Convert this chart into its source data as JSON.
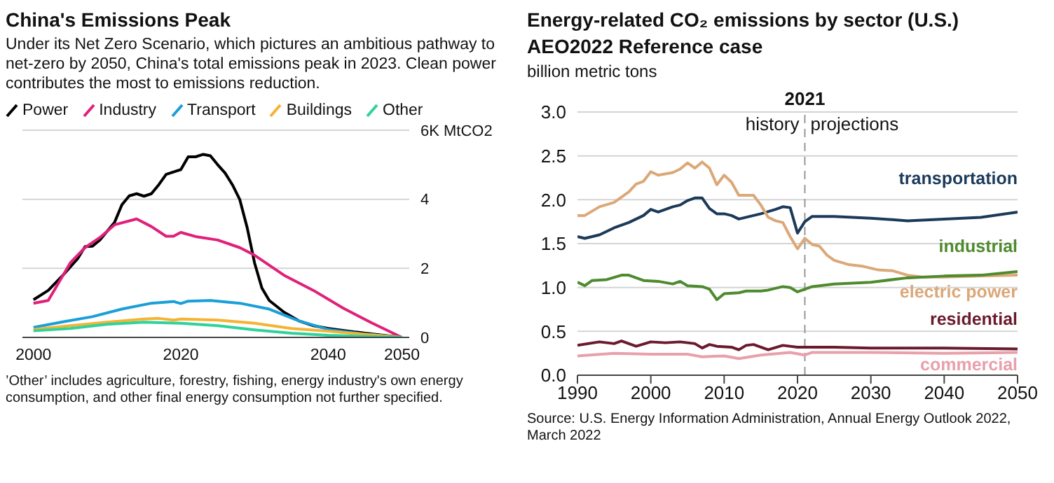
{
  "chart_data": [
    {
      "type": "line",
      "title": "China's Emissions Peak",
      "subtitle": "Under its Net Zero Scenario, which pictures an ambitious pathway to net-zero by 2050, China's total emissions peak in 2023. Clean power contributes the most to emissions reduction.",
      "legend": "top left",
      "grid": "y",
      "xlim": [
        1998.5,
        2051
      ],
      "xticks": [
        2000,
        2020,
        2040,
        2050
      ],
      "ylim": [
        0,
        6
      ],
      "yticks": [
        0,
        2,
        4,
        {
          "value": 6,
          "label": "6K MtCO2"
        }
      ],
      "annotations": [
        "’Other’ includes agriculture, forestry, fishing, energy industry's own energy consumption, and other final energy consumption not further specified."
      ],
      "series": [
        {
          "name": "Power",
          "color": "#000000",
          "x": [
            2000,
            2002,
            2004,
            2006,
            2007,
            2008,
            2009,
            2011,
            2012,
            2013,
            2014,
            2015,
            2016,
            2017,
            2018,
            2020,
            2021,
            2022,
            2023,
            2024,
            2025,
            2026,
            2027,
            2028,
            2029,
            2030,
            2031,
            2032,
            2034,
            2036,
            2038,
            2040,
            2045,
            2050
          ],
          "values": [
            1.09,
            1.36,
            1.8,
            2.28,
            2.63,
            2.64,
            2.82,
            3.33,
            3.84,
            4.1,
            4.16,
            4.09,
            4.16,
            4.42,
            4.72,
            4.86,
            5.23,
            5.23,
            5.3,
            5.26,
            5.0,
            4.76,
            4.42,
            3.99,
            3.18,
            2.16,
            1.43,
            1.07,
            0.73,
            0.48,
            0.34,
            0.26,
            0.12,
            0
          ]
        },
        {
          "name": "Industry",
          "color": "#e0207a",
          "x": [
            2000,
            2002,
            2003,
            2005,
            2007,
            2009,
            2011,
            2014,
            2016,
            2018,
            2019,
            2020,
            2022,
            2025,
            2028,
            2030,
            2034,
            2038,
            2042,
            2046,
            2050
          ],
          "values": [
            0.99,
            1.07,
            1.43,
            2.16,
            2.6,
            2.89,
            3.26,
            3.43,
            3.21,
            2.93,
            2.93,
            3.04,
            2.92,
            2.82,
            2.6,
            2.38,
            1.8,
            1.36,
            0.85,
            0.41,
            0
          ]
        },
        {
          "name": "Transport",
          "color": "#1a9fd8",
          "x": [
            2000,
            2004,
            2008,
            2012,
            2016,
            2019,
            2020,
            2021,
            2024,
            2028,
            2032,
            2036,
            2040,
            2045,
            2050
          ],
          "values": [
            0.29,
            0.45,
            0.6,
            0.82,
            0.99,
            1.04,
            0.98,
            1.05,
            1.07,
            0.99,
            0.82,
            0.48,
            0.23,
            0.09,
            0
          ]
        },
        {
          "name": "Buildings",
          "color": "#f5b335",
          "x": [
            2000,
            2005,
            2010,
            2015,
            2017,
            2019,
            2020,
            2025,
            2030,
            2035,
            2040,
            2045,
            2050
          ],
          "values": [
            0.23,
            0.34,
            0.44,
            0.53,
            0.55,
            0.5,
            0.53,
            0.5,
            0.41,
            0.26,
            0.18,
            0.09,
            0
          ]
        },
        {
          "name": "Other",
          "color": "#2fd39a",
          "x": [
            2000,
            2005,
            2010,
            2015,
            2020,
            2025,
            2030,
            2035,
            2040,
            2050
          ],
          "values": [
            0.19,
            0.26,
            0.38,
            0.44,
            0.41,
            0.34,
            0.22,
            0.12,
            0.06,
            0
          ]
        }
      ]
    },
    {
      "type": "line",
      "title": "Energy-related CO₂ emissions by sector (U.S.)",
      "subtitle": "AEO2022 Reference case",
      "ylabel": "billion metric tons",
      "legend": false,
      "grid": "y",
      "xlim": [
        1990,
        2050
      ],
      "xticks": [
        1990,
        2000,
        2010,
        2020,
        2030,
        2040,
        2050
      ],
      "ylim": [
        0,
        3
      ],
      "yticks": [
        {
          "value": 0,
          "label": "0.0"
        },
        {
          "value": 0.5,
          "label": "0.5"
        },
        {
          "value": 1,
          "label": "1.0"
        },
        {
          "value": 1.5,
          "label": "1.5"
        },
        {
          "value": 2,
          "label": "2.0"
        },
        {
          "value": 2.5,
          "label": "2.5"
        },
        {
          "value": 3,
          "label": "3.0"
        }
      ],
      "ref_lines": [
        {
          "axis": "x",
          "value": 2021,
          "label": "2021",
          "color": "#999999",
          "line_style": "dashed"
        }
      ],
      "annotations": [
        "history",
        "projections",
        "Source: U.S. Energy Information Administration, Annual Energy Outlook 2022, March 2022"
      ],
      "series": [
        {
          "name": "transportation",
          "color": "#1b3a5a",
          "x": [
            1990,
            1991,
            1993,
            1995,
            1997,
            1999,
            2000,
            2001,
            2003,
            2004,
            2005,
            2006,
            2007,
            2008,
            2009,
            2010,
            2011,
            2012,
            2013,
            2015,
            2017,
            2018,
            2019,
            2020,
            2021,
            2022,
            2025,
            2030,
            2035,
            2040,
            2045,
            2050
          ],
          "values": [
            1.58,
            1.56,
            1.6,
            1.68,
            1.74,
            1.82,
            1.89,
            1.86,
            1.92,
            1.94,
            1.99,
            2.02,
            2.02,
            1.9,
            1.84,
            1.84,
            1.82,
            1.78,
            1.8,
            1.84,
            1.89,
            1.92,
            1.91,
            1.62,
            1.75,
            1.81,
            1.81,
            1.79,
            1.76,
            1.78,
            1.8,
            1.86
          ]
        },
        {
          "name": "electric power",
          "color": "#dba878",
          "x": [
            1990,
            1991,
            1993,
            1995,
            1997,
            1998,
            1999,
            2000,
            2001,
            2003,
            2004,
            2005,
            2006,
            2007,
            2008,
            2009,
            2010,
            2011,
            2012,
            2014,
            2015,
            2016,
            2017,
            2018,
            2019,
            2020,
            2021,
            2022,
            2023,
            2024,
            2025,
            2027,
            2029,
            2031,
            2033,
            2035,
            2037,
            2040,
            2045,
            2050
          ],
          "values": [
            1.82,
            1.82,
            1.92,
            1.97,
            2.09,
            2.18,
            2.21,
            2.32,
            2.28,
            2.31,
            2.35,
            2.42,
            2.36,
            2.43,
            2.36,
            2.17,
            2.28,
            2.2,
            2.05,
            2.05,
            1.94,
            1.8,
            1.76,
            1.74,
            1.58,
            1.44,
            1.56,
            1.49,
            1.47,
            1.37,
            1.31,
            1.26,
            1.24,
            1.2,
            1.19,
            1.14,
            1.12,
            1.12,
            1.13,
            1.14
          ]
        },
        {
          "name": "industrial",
          "color": "#4e8a2e",
          "x": [
            1990,
            1991,
            1992,
            1994,
            1996,
            1997,
            1999,
            2001,
            2003,
            2004,
            2005,
            2007,
            2008,
            2009,
            2010,
            2012,
            2013,
            2015,
            2016,
            2018,
            2019,
            2020,
            2021,
            2022,
            2025,
            2030,
            2035,
            2040,
            2045,
            2050
          ],
          "values": [
            1.06,
            1.02,
            1.08,
            1.09,
            1.14,
            1.14,
            1.08,
            1.07,
            1.04,
            1.07,
            1.02,
            1.01,
            0.98,
            0.86,
            0.93,
            0.94,
            0.96,
            0.96,
            0.97,
            1.01,
            1.0,
            0.95,
            0.98,
            1.01,
            1.04,
            1.06,
            1.11,
            1.13,
            1.14,
            1.18
          ]
        },
        {
          "name": "residential",
          "color": "#6b1a2e",
          "x": [
            1990,
            1993,
            1995,
            1996,
            1998,
            2000,
            2002,
            2004,
            2006,
            2007,
            2008,
            2009,
            2011,
            2012,
            2013,
            2014,
            2016,
            2018,
            2020,
            2025,
            2030,
            2040,
            2050
          ],
          "values": [
            0.34,
            0.38,
            0.36,
            0.39,
            0.33,
            0.38,
            0.37,
            0.38,
            0.36,
            0.31,
            0.35,
            0.33,
            0.32,
            0.29,
            0.34,
            0.35,
            0.29,
            0.34,
            0.32,
            0.32,
            0.31,
            0.31,
            0.3
          ]
        },
        {
          "name": "commercial",
          "color": "#e8a0aa",
          "x": [
            1990,
            1995,
            2000,
            2005,
            2007,
            2010,
            2012,
            2015,
            2019,
            2021,
            2022,
            2030,
            2040,
            2050
          ],
          "values": [
            0.22,
            0.25,
            0.24,
            0.24,
            0.21,
            0.22,
            0.19,
            0.23,
            0.26,
            0.23,
            0.26,
            0.26,
            0.25,
            0.26
          ]
        }
      ]
    }
  ]
}
